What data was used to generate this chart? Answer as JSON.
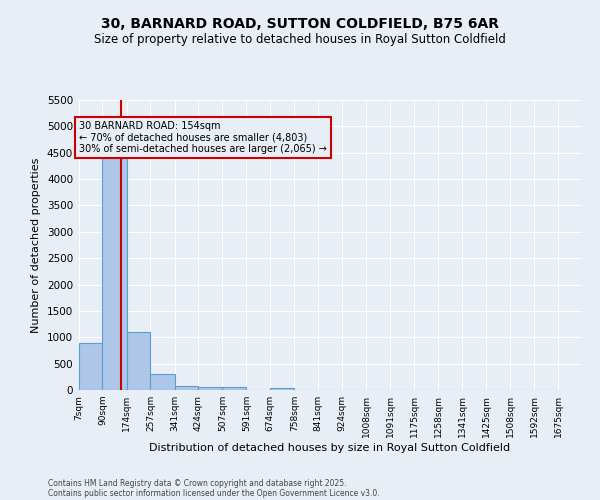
{
  "title": "30, BARNARD ROAD, SUTTON COLDFIELD, B75 6AR",
  "subtitle": "Size of property relative to detached houses in Royal Sutton Coldfield",
  "xlabel": "Distribution of detached houses by size in Royal Sutton Coldfield",
  "ylabel": "Number of detached properties",
  "bin_labels": [
    "7sqm",
    "90sqm",
    "174sqm",
    "257sqm",
    "341sqm",
    "424sqm",
    "507sqm",
    "591sqm",
    "674sqm",
    "758sqm",
    "841sqm",
    "924sqm",
    "1008sqm",
    "1091sqm",
    "1175sqm",
    "1258sqm",
    "1341sqm",
    "1425sqm",
    "1508sqm",
    "1592sqm",
    "1675sqm"
  ],
  "bin_edges": [
    7,
    90,
    174,
    257,
    341,
    424,
    507,
    591,
    674,
    758,
    841,
    924,
    1008,
    1091,
    1175,
    1258,
    1341,
    1425,
    1508,
    1592,
    1675
  ],
  "bar_heights": [
    900,
    4550,
    1100,
    300,
    80,
    60,
    50,
    0,
    30,
    0,
    0,
    0,
    0,
    0,
    0,
    0,
    0,
    0,
    0,
    0
  ],
  "bar_color": "#aec6e8",
  "bar_edge_color": "#5a9fd4",
  "property_size": 154,
  "red_line_color": "#cc0000",
  "annotation_line1": "30 BARNARD ROAD: 154sqm",
  "annotation_line2": "← 70% of detached houses are smaller (4,803)",
  "annotation_line3": "30% of semi-detached houses are larger (2,065) →",
  "annotation_box_color": "#cc0000",
  "ylim": [
    0,
    5500
  ],
  "yticks": [
    0,
    500,
    1000,
    1500,
    2000,
    2500,
    3000,
    3500,
    4000,
    4500,
    5000,
    5500
  ],
  "bg_color": "#e8eef5",
  "grid_color": "#ffffff",
  "footer_line1": "Contains HM Land Registry data © Crown copyright and database right 2025.",
  "footer_line2": "Contains public sector information licensed under the Open Government Licence v3.0."
}
